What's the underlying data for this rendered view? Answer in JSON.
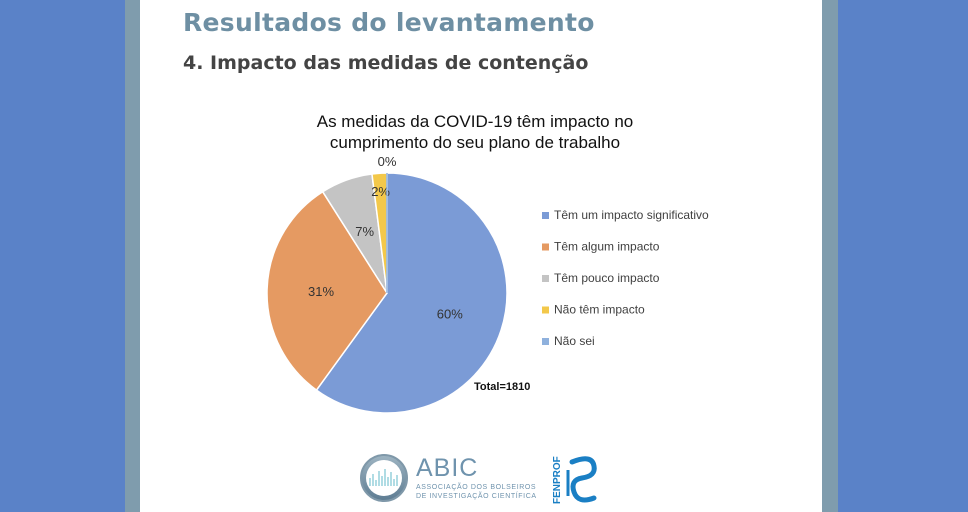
{
  "slide": {
    "title": "Resultados do levantamento",
    "subtitle": "4. Impacto das medidas de contenção"
  },
  "chart_data": {
    "type": "pie",
    "title": "As medidas da COVID-19 têm impacto no cumprimento do seu plano de trabalho",
    "categories": [
      "Têm um impacto significativo",
      "Têm algum impacto",
      "Têm pouco impacto",
      "Não têm impacto",
      "Não sei"
    ],
    "values": [
      60,
      31,
      7,
      2,
      0
    ],
    "labels": [
      "60%",
      "31%",
      "7%",
      "2%",
      "0%"
    ],
    "colors": [
      "#7b9bd6",
      "#e59a62",
      "#c4c4c4",
      "#f3c84a",
      "#8fb1dd"
    ],
    "legend_position": "right",
    "annotation": "Total=1810"
  },
  "logos": {
    "abic": {
      "name": "ABIC",
      "line1": "ASSOCIAÇÃO DOS BOLSEIROS",
      "line2": "DE INVESTIGAÇÃO CIENTÍFICA"
    },
    "fenprof": {
      "name": "FENPROF"
    }
  }
}
